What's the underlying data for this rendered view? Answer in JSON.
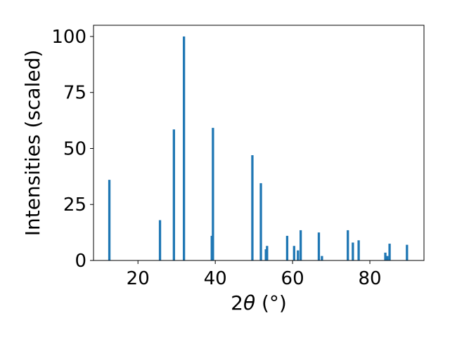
{
  "chart_data": {
    "type": "bar",
    "title": "",
    "xlabel": "2θ (°)",
    "xlabel_parts": {
      "prefix": "2",
      "symbol": "θ",
      "suffix": " (°)"
    },
    "ylabel": "Intensities (scaled)",
    "xlim": [
      8.5,
      94
    ],
    "ylim": [
      0,
      105
    ],
    "xticks": [
      20,
      40,
      60,
      80
    ],
    "yticks": [
      0,
      25,
      50,
      75,
      100
    ],
    "xtick_labels": [
      "20",
      "40",
      "60",
      "80"
    ],
    "ytick_labels": [
      "0",
      "25",
      "50",
      "75",
      "100"
    ],
    "grid": false,
    "legend": "none",
    "bar_color": "#1f77b4",
    "bar_width": 0.6,
    "x": [
      12.6,
      25.7,
      29.3,
      31.9,
      39.1,
      39.4,
      49.6,
      51.8,
      53.1,
      53.4,
      58.6,
      60.4,
      61.4,
      62.1,
      66.8,
      67.6,
      74.3,
      75.6,
      77.1,
      84.0,
      84.5,
      85.1,
      89.6
    ],
    "values": [
      36.0,
      18.0,
      58.5,
      100.0,
      11.0,
      59.2,
      47.0,
      34.5,
      5.0,
      6.5,
      11.0,
      6.5,
      4.5,
      13.5,
      12.5,
      2.0,
      13.5,
      8.0,
      9.0,
      3.5,
      2.0,
      7.5,
      7.0
    ]
  }
}
